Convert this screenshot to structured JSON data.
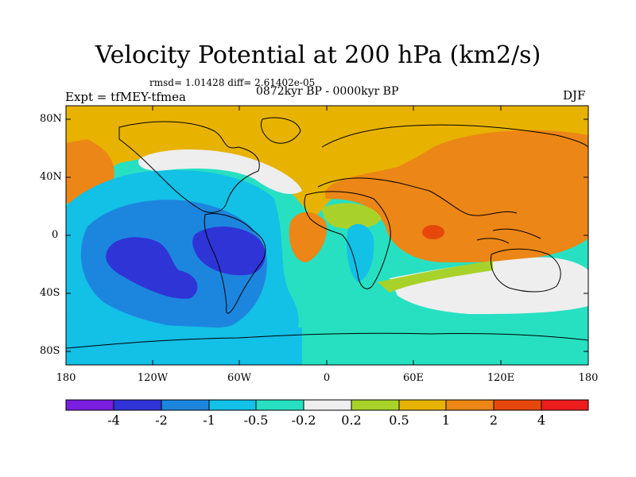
{
  "map": {
    "title": "Velocity Potential at 200 hPa (km2/s)",
    "stats": "rmsd= 1.01428 diff= 2.61402e-05",
    "period": "0872kyr BP - 0000kyr BP",
    "experiment": "Expt = tfMEY-tfmea",
    "season": "DJF",
    "lat_ticks": [
      "80N",
      "40N",
      "0",
      "40S",
      "80S"
    ],
    "lon_ticks": [
      "180",
      "120W",
      "60W",
      "0",
      "60E",
      "120E",
      "180"
    ]
  },
  "colorbar": {
    "labels": [
      "-4",
      "-2",
      "-1",
      "-0.5",
      "-0.2",
      "0.2",
      "0.5",
      "1",
      "2",
      "4"
    ],
    "colors": [
      "#7a1ee0",
      "#2f34d6",
      "#1c86df",
      "#13c0e6",
      "#27e0c2",
      "#eeeeee",
      "#a8d22a",
      "#e7b300",
      "#ec8616",
      "#e6480c",
      "#ee1d1d"
    ]
  }
}
